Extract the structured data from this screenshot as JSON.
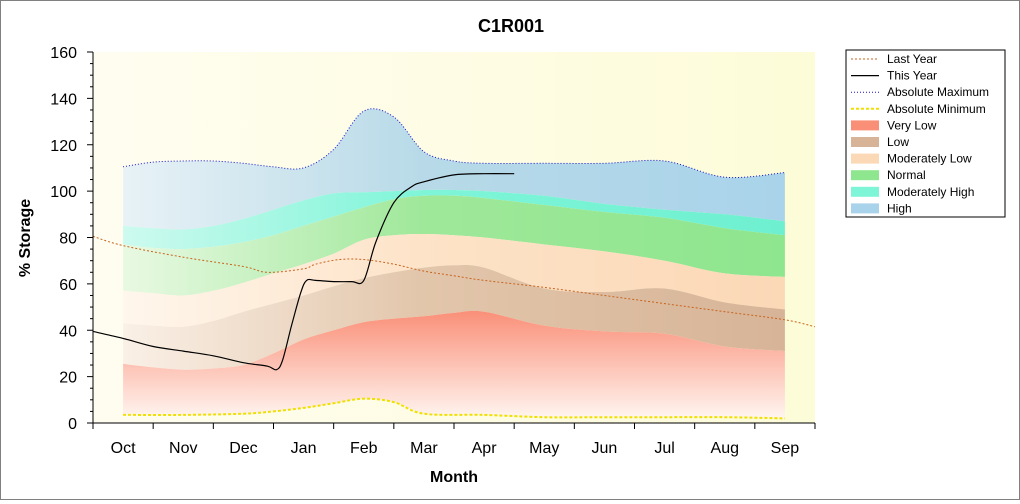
{
  "chart_data": {
    "type": "area",
    "title": "C1R001",
    "xlabel": "Month",
    "ylabel": "% Storage",
    "ylim": [
      0,
      160
    ],
    "yticks": [
      "0",
      "20",
      "40",
      "60",
      "80",
      "100",
      "120",
      "140",
      "160"
    ],
    "categories": [
      "Oct",
      "Nov",
      "Dec",
      "Jan",
      "Feb",
      "Mar",
      "Apr",
      "May",
      "Jun",
      "Jul",
      "Aug",
      "Sep"
    ],
    "x_note": "x values are month index: 0 = Oct ... 11 = Sep; range -0.5 to 11.5",
    "xlim": [
      -0.5,
      11.5
    ],
    "legend_position": "right",
    "lines": [
      {
        "name": "Last Year",
        "color": "#c8641e",
        "dash": "2,2",
        "width": 1,
        "x": [
          -0.5,
          0,
          1,
          2,
          2.4,
          3,
          3.2,
          3.6,
          4,
          4.5,
          5,
          5.5,
          6,
          7,
          8,
          9,
          10,
          11,
          11.5
        ],
        "y": [
          80.5,
          76.5,
          71.5,
          67.5,
          65,
          66.5,
          68.5,
          70.5,
          70.5,
          68.5,
          65.5,
          63.5,
          61.5,
          58.5,
          55,
          51.5,
          48,
          44.5,
          41.5
        ]
      },
      {
        "name": "This Year",
        "color": "#000000",
        "dash": "",
        "width": 1.2,
        "x": [
          -0.5,
          0,
          0.5,
          1,
          1.5,
          2,
          2.4,
          2.55,
          2.65,
          2.8,
          2.95,
          3.05,
          3.2,
          3.5,
          3.8,
          4,
          4.2,
          4.5,
          4.8,
          5,
          5.5,
          6,
          6.5
        ],
        "y": [
          39.5,
          36.5,
          33,
          31,
          29,
          26,
          24.5,
          23,
          27,
          42,
          56,
          61.5,
          61.5,
          61,
          61,
          61.5,
          78,
          95,
          102,
          104,
          107,
          107.5,
          107.5
        ]
      },
      {
        "name": "Absolute Maximum",
        "color": "#1414c8",
        "dash": "1,2",
        "width": 1,
        "x": [
          0,
          0.5,
          1,
          1.5,
          2,
          2.5,
          3,
          3.5,
          4,
          4.5,
          5,
          5.5,
          6,
          7,
          8,
          9,
          10,
          11
        ],
        "y": [
          110.5,
          112.5,
          113,
          113,
          112,
          110.5,
          110,
          118,
          134.5,
          132,
          117,
          113,
          112,
          112,
          112,
          113,
          106,
          108
        ]
      },
      {
        "name": "Absolute Minimum",
        "color": "#f0e000",
        "dash": "3,2",
        "width": 2,
        "x": [
          0,
          1,
          2,
          2.5,
          3,
          3.5,
          4,
          4.5,
          5,
          6,
          7,
          8,
          9,
          10,
          11
        ],
        "y": [
          3.5,
          3.5,
          4,
          5,
          6.5,
          8.5,
          10.5,
          9,
          4,
          3.5,
          2.5,
          2.5,
          2.5,
          2.5,
          2
        ]
      }
    ],
    "bands": {
      "x": [
        0,
        0.5,
        1,
        1.5,
        2,
        2.5,
        3,
        3.5,
        4,
        4.5,
        5,
        5.5,
        6,
        7,
        8,
        9,
        10,
        11
      ],
      "bottom": [
        3.5,
        3.5,
        3.5,
        3.5,
        4,
        5,
        6.5,
        8.5,
        10.5,
        9,
        4,
        3.5,
        3.5,
        2.5,
        2.5,
        2.5,
        2.5,
        2
      ],
      "tops": {
        "very_low": [
          25.5,
          24,
          23,
          23.5,
          25,
          30,
          36,
          40,
          43.5,
          45,
          46,
          47.5,
          48,
          42,
          39.5,
          38.5,
          33,
          31
        ],
        "low": [
          43,
          42,
          41.5,
          44,
          48,
          51.5,
          55,
          59,
          62.5,
          65,
          67,
          68,
          67,
          58,
          56.5,
          58,
          52,
          49
        ],
        "moderately_low": [
          57,
          56,
          55,
          57,
          60.5,
          64.5,
          68.5,
          73,
          79,
          81,
          81.5,
          81,
          80,
          77,
          74,
          70,
          64.5,
          63
        ],
        "normal": [
          77,
          75.5,
          75,
          76,
          78,
          81,
          85,
          89,
          93,
          96.5,
          98,
          98,
          97,
          94,
          91,
          88.5,
          84,
          81
        ],
        "moderately_high": [
          85,
          84,
          83.5,
          85,
          88,
          92,
          96,
          99,
          99.5,
          100,
          100.5,
          100.5,
          100,
          98,
          94.5,
          92,
          90,
          87
        ]
      }
    },
    "legend": [
      {
        "label": "Last Year",
        "kind": "line",
        "color": "#c8641e",
        "dash": "2,2",
        "width": 1
      },
      {
        "label": "This Year",
        "kind": "line",
        "color": "#000000",
        "dash": "",
        "width": 1.2
      },
      {
        "label": "Absolute Maximum",
        "kind": "line",
        "color": "#1414c8",
        "dash": "1,2",
        "width": 1
      },
      {
        "label": "Absolute Minimum",
        "kind": "line",
        "color": "#f0e000",
        "dash": "3,2",
        "width": 2
      },
      {
        "label": "Very Low",
        "kind": "box",
        "color": "#fa8f78"
      },
      {
        "label": "Low",
        "kind": "box",
        "color": "#d7b497"
      },
      {
        "label": "Moderately Low",
        "kind": "box",
        "color": "#fbd8b6"
      },
      {
        "label": "Normal",
        "kind": "box",
        "color": "#8ee68e"
      },
      {
        "label": "Moderately High",
        "kind": "box",
        "color": "#7ff5d8"
      },
      {
        "label": "High",
        "kind": "box",
        "color": "#a9d3ea"
      }
    ]
  }
}
